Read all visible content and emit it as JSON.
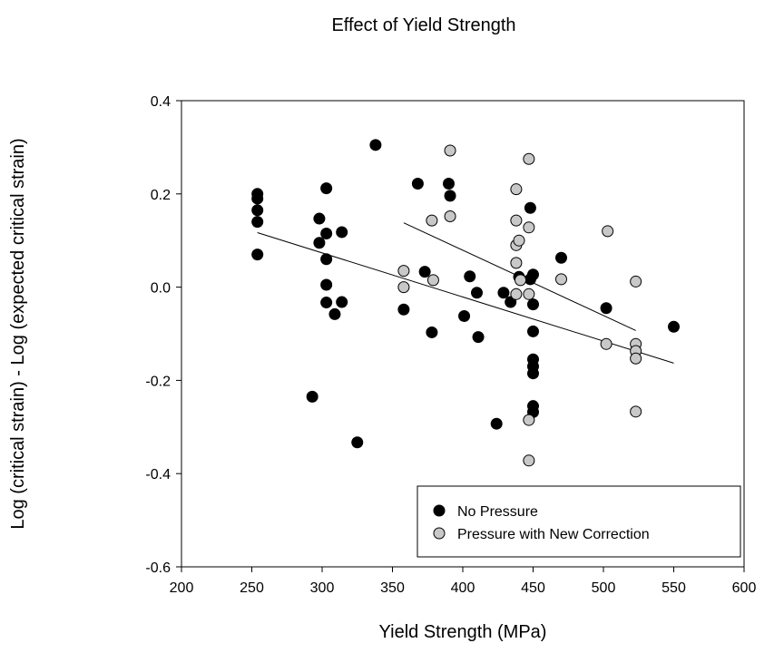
{
  "chart_data": {
    "type": "scatter",
    "title": "Effect of Yield Strength",
    "xlabel": "Yield Strength (MPa)",
    "ylabel": "Log (critical strain) - Log (expected critical strain)",
    "xlim": [
      200,
      600
    ],
    "ylim": [
      -0.6,
      0.4
    ],
    "x_ticks": [
      200,
      250,
      300,
      350,
      400,
      450,
      500,
      550,
      600
    ],
    "y_ticks": [
      "-0.6",
      "-0.4",
      "-0.2",
      "0.0",
      "0.2",
      "0.4"
    ],
    "grid": false,
    "legend_position": "bottom-right",
    "series": [
      {
        "name": "No Pressure",
        "color": "#000000",
        "points": [
          [
            254,
            0.2
          ],
          [
            254,
            0.19
          ],
          [
            254,
            0.165
          ],
          [
            254,
            0.14
          ],
          [
            254,
            0.07
          ],
          [
            293,
            -0.235
          ],
          [
            298,
            0.147
          ],
          [
            298,
            0.095
          ],
          [
            303,
            0.212
          ],
          [
            303,
            0.115
          ],
          [
            303,
            0.06
          ],
          [
            303,
            0.005
          ],
          [
            303,
            -0.033
          ],
          [
            309,
            -0.058
          ],
          [
            314,
            0.118
          ],
          [
            314,
            -0.032
          ],
          [
            325,
            -0.333
          ],
          [
            338,
            0.305
          ],
          [
            358,
            -0.048
          ],
          [
            368,
            0.222
          ],
          [
            373,
            0.033
          ],
          [
            378,
            -0.097
          ],
          [
            390,
            0.222
          ],
          [
            391,
            0.196
          ],
          [
            401,
            -0.062
          ],
          [
            405,
            0.023
          ],
          [
            410,
            -0.012
          ],
          [
            411,
            -0.107
          ],
          [
            424,
            -0.293
          ],
          [
            429,
            -0.012
          ],
          [
            434,
            -0.032
          ],
          [
            440,
            0.022
          ],
          [
            448,
            0.17
          ],
          [
            448,
            0.017
          ],
          [
            450,
            0.027
          ],
          [
            450,
            -0.037
          ],
          [
            450,
            -0.095
          ],
          [
            450,
            -0.155
          ],
          [
            450,
            -0.17
          ],
          [
            450,
            -0.185
          ],
          [
            450,
            -0.255
          ],
          [
            450,
            -0.268
          ],
          [
            470,
            0.063
          ],
          [
            502,
            -0.045
          ],
          [
            550,
            -0.085
          ]
        ],
        "trend": [
          [
            254,
            0.117
          ],
          [
            550,
            -0.163
          ]
        ]
      },
      {
        "name": "Pressure with New Correction",
        "color": "#c8c8c8",
        "points": [
          [
            358,
            0.035
          ],
          [
            358,
            0.0
          ],
          [
            378,
            0.143
          ],
          [
            379,
            0.015
          ],
          [
            391,
            0.293
          ],
          [
            391,
            0.152
          ],
          [
            438,
            0.21
          ],
          [
            438,
            0.143
          ],
          [
            438,
            0.09
          ],
          [
            438,
            0.052
          ],
          [
            438,
            -0.015
          ],
          [
            440,
            0.1
          ],
          [
            441,
            0.015
          ],
          [
            447,
            0.275
          ],
          [
            447,
            0.128
          ],
          [
            447,
            -0.015
          ],
          [
            447,
            -0.285
          ],
          [
            447,
            -0.372
          ],
          [
            470,
            0.017
          ],
          [
            503,
            0.12
          ],
          [
            502,
            -0.122
          ],
          [
            523,
            0.012
          ],
          [
            523,
            -0.122
          ],
          [
            523,
            -0.137
          ],
          [
            523,
            -0.153
          ],
          [
            523,
            -0.267
          ]
        ],
        "trend": [
          [
            358,
            0.138
          ],
          [
            523,
            -0.093
          ]
        ]
      }
    ]
  }
}
